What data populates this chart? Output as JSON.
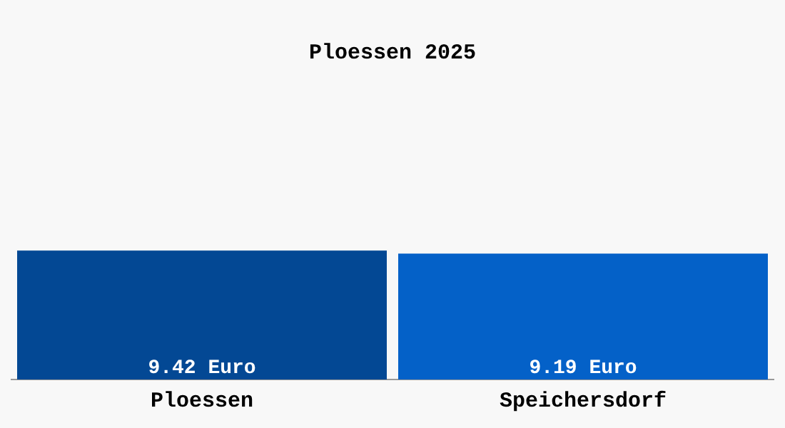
{
  "chart_data": {
    "type": "bar",
    "title": "Ploessen 2025",
    "categories": [
      "Ploessen",
      "Speichersdorf"
    ],
    "values": [
      9.42,
      9.19
    ],
    "colors": [
      "#034894",
      "#0461c8"
    ],
    "value_labels": [
      "9.42 Euro",
      "9.19 Euro"
    ],
    "tick_labels": "x",
    "grid": false,
    "legend": false
  }
}
